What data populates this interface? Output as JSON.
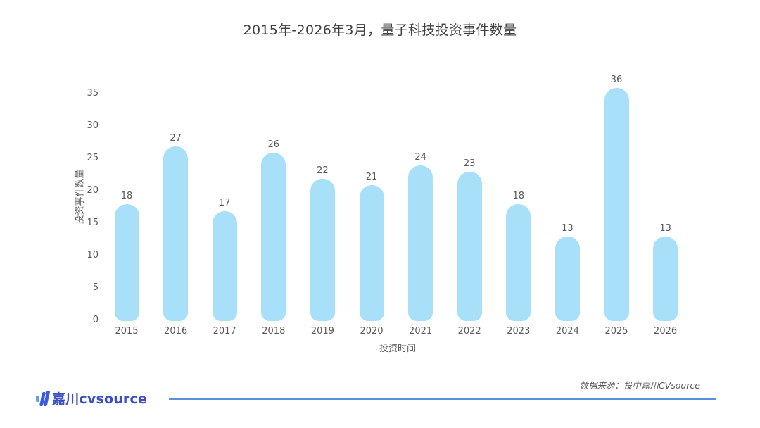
{
  "title": "2015年-2026年3月，量子科技投资事件数量",
  "chart_data": {
    "type": "bar",
    "title": "2015年-2026年3月，量子科技投资事件数量",
    "xlabel": "投资时间",
    "ylabel": "投资事件数量",
    "categories": [
      "2015",
      "2016",
      "2017",
      "2018",
      "2019",
      "2020",
      "2021",
      "2022",
      "2023",
      "2024",
      "2025",
      "2026"
    ],
    "values": [
      18,
      27,
      17,
      26,
      22,
      21,
      24,
      23,
      18,
      13,
      36,
      13
    ],
    "ylim": [
      0,
      35
    ],
    "yticks": [
      0,
      5,
      10,
      15,
      20,
      25,
      30,
      35
    ],
    "grid": false,
    "legend": null,
    "data_labels": true,
    "bar_color": "#a8dff9"
  },
  "footer": {
    "logo_text": "嘉川cvsource",
    "source_text": "数据来源：投中嘉川CVsource",
    "rule_color": "#5b8fd9"
  }
}
